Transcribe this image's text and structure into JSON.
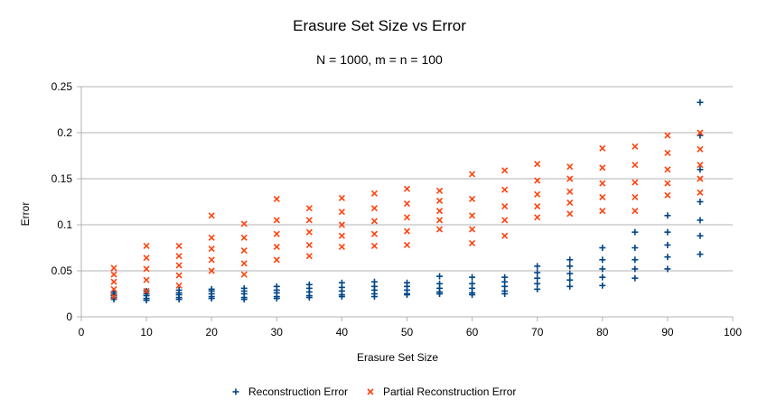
{
  "chart_data": {
    "type": "scatter",
    "title": "Erasure Set Size vs Error",
    "subtitle": "N = 1000, m = n = 100",
    "xlabel": "Erasure Set Size",
    "ylabel": "Error",
    "xlim": [
      0,
      100
    ],
    "ylim": [
      0,
      0.25
    ],
    "x_ticks": [
      0,
      10,
      20,
      30,
      40,
      50,
      60,
      70,
      80,
      90,
      100
    ],
    "y_ticks": [
      0,
      0.05,
      0.1,
      0.15,
      0.2,
      0.25
    ],
    "y_tick_labels": [
      "0",
      "0.05",
      "0.1",
      "0.15",
      "0.2",
      "0.25"
    ],
    "grid": "horizontal",
    "legend": "bottom",
    "series": [
      {
        "name": "Reconstruction Error",
        "marker": "plus",
        "color": "#004586",
        "points": [
          {
            "x": 5,
            "y": 0.021
          },
          {
            "x": 5,
            "y": 0.023
          },
          {
            "x": 5,
            "y": 0.025
          },
          {
            "x": 5,
            "y": 0.027
          },
          {
            "x": 5,
            "y": 0.019
          },
          {
            "x": 10,
            "y": 0.02
          },
          {
            "x": 10,
            "y": 0.023
          },
          {
            "x": 10,
            "y": 0.025
          },
          {
            "x": 10,
            "y": 0.028
          },
          {
            "x": 10,
            "y": 0.018
          },
          {
            "x": 15,
            "y": 0.021
          },
          {
            "x": 15,
            "y": 0.024
          },
          {
            "x": 15,
            "y": 0.026
          },
          {
            "x": 15,
            "y": 0.029
          },
          {
            "x": 15,
            "y": 0.019
          },
          {
            "x": 20,
            "y": 0.022
          },
          {
            "x": 20,
            "y": 0.025
          },
          {
            "x": 20,
            "y": 0.028
          },
          {
            "x": 20,
            "y": 0.03
          },
          {
            "x": 20,
            "y": 0.02
          },
          {
            "x": 25,
            "y": 0.021
          },
          {
            "x": 25,
            "y": 0.025
          },
          {
            "x": 25,
            "y": 0.028
          },
          {
            "x": 25,
            "y": 0.031
          },
          {
            "x": 25,
            "y": 0.019
          },
          {
            "x": 30,
            "y": 0.022
          },
          {
            "x": 30,
            "y": 0.026
          },
          {
            "x": 30,
            "y": 0.029
          },
          {
            "x": 30,
            "y": 0.033
          },
          {
            "x": 30,
            "y": 0.02
          },
          {
            "x": 35,
            "y": 0.023
          },
          {
            "x": 35,
            "y": 0.027
          },
          {
            "x": 35,
            "y": 0.031
          },
          {
            "x": 35,
            "y": 0.035
          },
          {
            "x": 35,
            "y": 0.021
          },
          {
            "x": 40,
            "y": 0.024
          },
          {
            "x": 40,
            "y": 0.028
          },
          {
            "x": 40,
            "y": 0.032
          },
          {
            "x": 40,
            "y": 0.037
          },
          {
            "x": 40,
            "y": 0.022
          },
          {
            "x": 45,
            "y": 0.025
          },
          {
            "x": 45,
            "y": 0.029
          },
          {
            "x": 45,
            "y": 0.033
          },
          {
            "x": 45,
            "y": 0.038
          },
          {
            "x": 45,
            "y": 0.022
          },
          {
            "x": 50,
            "y": 0.025
          },
          {
            "x": 50,
            "y": 0.029
          },
          {
            "x": 50,
            "y": 0.033
          },
          {
            "x": 50,
            "y": 0.037
          },
          {
            "x": 50,
            "y": 0.024
          },
          {
            "x": 55,
            "y": 0.027
          },
          {
            "x": 55,
            "y": 0.031
          },
          {
            "x": 55,
            "y": 0.036
          },
          {
            "x": 55,
            "y": 0.044
          },
          {
            "x": 55,
            "y": 0.025
          },
          {
            "x": 60,
            "y": 0.026
          },
          {
            "x": 60,
            "y": 0.031
          },
          {
            "x": 60,
            "y": 0.036
          },
          {
            "x": 60,
            "y": 0.043
          },
          {
            "x": 60,
            "y": 0.024
          },
          {
            "x": 65,
            "y": 0.028
          },
          {
            "x": 65,
            "y": 0.033
          },
          {
            "x": 65,
            "y": 0.038
          },
          {
            "x": 65,
            "y": 0.043
          },
          {
            "x": 65,
            "y": 0.025
          },
          {
            "x": 70,
            "y": 0.03
          },
          {
            "x": 70,
            "y": 0.036
          },
          {
            "x": 70,
            "y": 0.042
          },
          {
            "x": 70,
            "y": 0.048
          },
          {
            "x": 70,
            "y": 0.055
          },
          {
            "x": 75,
            "y": 0.033
          },
          {
            "x": 75,
            "y": 0.04
          },
          {
            "x": 75,
            "y": 0.047
          },
          {
            "x": 75,
            "y": 0.055
          },
          {
            "x": 75,
            "y": 0.062
          },
          {
            "x": 80,
            "y": 0.034
          },
          {
            "x": 80,
            "y": 0.043
          },
          {
            "x": 80,
            "y": 0.052
          },
          {
            "x": 80,
            "y": 0.062
          },
          {
            "x": 80,
            "y": 0.075
          },
          {
            "x": 85,
            "y": 0.042
          },
          {
            "x": 85,
            "y": 0.052
          },
          {
            "x": 85,
            "y": 0.062
          },
          {
            "x": 85,
            "y": 0.075
          },
          {
            "x": 85,
            "y": 0.092
          },
          {
            "x": 90,
            "y": 0.052
          },
          {
            "x": 90,
            "y": 0.065
          },
          {
            "x": 90,
            "y": 0.078
          },
          {
            "x": 90,
            "y": 0.092
          },
          {
            "x": 90,
            "y": 0.11
          },
          {
            "x": 95,
            "y": 0.068
          },
          {
            "x": 95,
            "y": 0.088
          },
          {
            "x": 95,
            "y": 0.105
          },
          {
            "x": 95,
            "y": 0.125
          },
          {
            "x": 95,
            "y": 0.16
          },
          {
            "x": 95,
            "y": 0.197
          },
          {
            "x": 95,
            "y": 0.233
          }
        ]
      },
      {
        "name": "Partial Reconstruction Error",
        "marker": "x",
        "color": "#ff420e",
        "points": [
          {
            "x": 5,
            "y": 0.022
          },
          {
            "x": 5,
            "y": 0.03
          },
          {
            "x": 5,
            "y": 0.038
          },
          {
            "x": 5,
            "y": 0.046
          },
          {
            "x": 5,
            "y": 0.053
          },
          {
            "x": 10,
            "y": 0.028
          },
          {
            "x": 10,
            "y": 0.04
          },
          {
            "x": 10,
            "y": 0.052
          },
          {
            "x": 10,
            "y": 0.064
          },
          {
            "x": 10,
            "y": 0.077
          },
          {
            "x": 15,
            "y": 0.034
          },
          {
            "x": 15,
            "y": 0.045
          },
          {
            "x": 15,
            "y": 0.056
          },
          {
            "x": 15,
            "y": 0.066
          },
          {
            "x": 15,
            "y": 0.077
          },
          {
            "x": 20,
            "y": 0.05
          },
          {
            "x": 20,
            "y": 0.062
          },
          {
            "x": 20,
            "y": 0.074
          },
          {
            "x": 20,
            "y": 0.086
          },
          {
            "x": 20,
            "y": 0.11
          },
          {
            "x": 25,
            "y": 0.046
          },
          {
            "x": 25,
            "y": 0.058
          },
          {
            "x": 25,
            "y": 0.072
          },
          {
            "x": 25,
            "y": 0.086
          },
          {
            "x": 25,
            "y": 0.101
          },
          {
            "x": 30,
            "y": 0.062
          },
          {
            "x": 30,
            "y": 0.076
          },
          {
            "x": 30,
            "y": 0.09
          },
          {
            "x": 30,
            "y": 0.105
          },
          {
            "x": 30,
            "y": 0.128
          },
          {
            "x": 35,
            "y": 0.066
          },
          {
            "x": 35,
            "y": 0.078
          },
          {
            "x": 35,
            "y": 0.092
          },
          {
            "x": 35,
            "y": 0.105
          },
          {
            "x": 35,
            "y": 0.118
          },
          {
            "x": 40,
            "y": 0.076
          },
          {
            "x": 40,
            "y": 0.088
          },
          {
            "x": 40,
            "y": 0.1
          },
          {
            "x": 40,
            "y": 0.114
          },
          {
            "x": 40,
            "y": 0.129
          },
          {
            "x": 45,
            "y": 0.077
          },
          {
            "x": 45,
            "y": 0.09
          },
          {
            "x": 45,
            "y": 0.104
          },
          {
            "x": 45,
            "y": 0.118
          },
          {
            "x": 45,
            "y": 0.134
          },
          {
            "x": 50,
            "y": 0.078
          },
          {
            "x": 50,
            "y": 0.093
          },
          {
            "x": 50,
            "y": 0.108
          },
          {
            "x": 50,
            "y": 0.123
          },
          {
            "x": 50,
            "y": 0.139
          },
          {
            "x": 55,
            "y": 0.095
          },
          {
            "x": 55,
            "y": 0.105
          },
          {
            "x": 55,
            "y": 0.115
          },
          {
            "x": 55,
            "y": 0.126
          },
          {
            "x": 55,
            "y": 0.137
          },
          {
            "x": 60,
            "y": 0.08
          },
          {
            "x": 60,
            "y": 0.095
          },
          {
            "x": 60,
            "y": 0.11
          },
          {
            "x": 60,
            "y": 0.128
          },
          {
            "x": 60,
            "y": 0.155
          },
          {
            "x": 65,
            "y": 0.088
          },
          {
            "x": 65,
            "y": 0.105
          },
          {
            "x": 65,
            "y": 0.12
          },
          {
            "x": 65,
            "y": 0.138
          },
          {
            "x": 65,
            "y": 0.159
          },
          {
            "x": 70,
            "y": 0.108
          },
          {
            "x": 70,
            "y": 0.12
          },
          {
            "x": 70,
            "y": 0.133
          },
          {
            "x": 70,
            "y": 0.148
          },
          {
            "x": 70,
            "y": 0.166
          },
          {
            "x": 75,
            "y": 0.112
          },
          {
            "x": 75,
            "y": 0.124
          },
          {
            "x": 75,
            "y": 0.136
          },
          {
            "x": 75,
            "y": 0.15
          },
          {
            "x": 75,
            "y": 0.163
          },
          {
            "x": 80,
            "y": 0.115
          },
          {
            "x": 80,
            "y": 0.13
          },
          {
            "x": 80,
            "y": 0.145
          },
          {
            "x": 80,
            "y": 0.162
          },
          {
            "x": 80,
            "y": 0.183
          },
          {
            "x": 85,
            "y": 0.115
          },
          {
            "x": 85,
            "y": 0.13
          },
          {
            "x": 85,
            "y": 0.146
          },
          {
            "x": 85,
            "y": 0.165
          },
          {
            "x": 85,
            "y": 0.185
          },
          {
            "x": 90,
            "y": 0.132
          },
          {
            "x": 90,
            "y": 0.145
          },
          {
            "x": 90,
            "y": 0.16
          },
          {
            "x": 90,
            "y": 0.178
          },
          {
            "x": 90,
            "y": 0.197
          },
          {
            "x": 95,
            "y": 0.135
          },
          {
            "x": 95,
            "y": 0.15
          },
          {
            "x": 95,
            "y": 0.165
          },
          {
            "x": 95,
            "y": 0.182
          },
          {
            "x": 95,
            "y": 0.2
          }
        ]
      }
    ]
  }
}
